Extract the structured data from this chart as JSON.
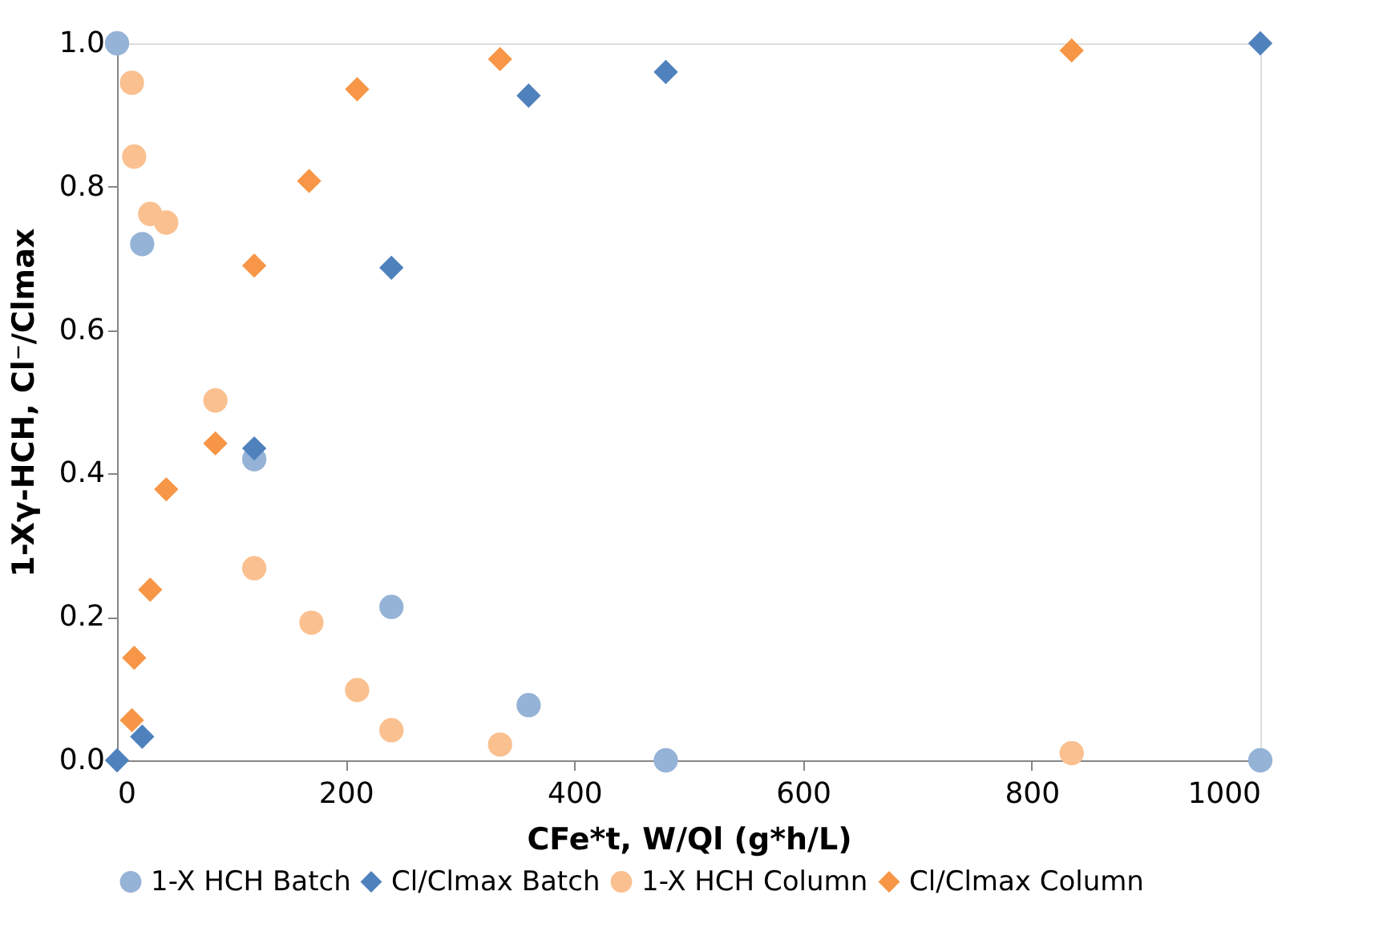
{
  "chart_data": {
    "type": "scatter",
    "xlabel": "CFe*t, W/Ql (g*h/L)",
    "ylabel": "1-Xγ-HCH, Cl⁻/Clmax",
    "xlim": [
      0,
      1000
    ],
    "xticks": [
      0,
      200,
      400,
      600,
      800,
      1000
    ],
    "ylim": [
      0,
      1
    ],
    "yticks": [
      {
        "value": 0,
        "label": "0.0"
      },
      0.2,
      0.4,
      0.6,
      0.8,
      {
        "value": 1,
        "label": "1.0"
      }
    ],
    "grid": false,
    "legend": "bottom",
    "series": [
      {
        "name": "1-X HCH Batch",
        "color": "#95b3d7",
        "marker": "circle",
        "x": [
          0,
          22,
          120,
          240,
          360,
          480,
          1000
        ],
        "values": [
          1.0,
          0.72,
          0.42,
          0.214,
          0.077,
          0.0,
          0.0
        ]
      },
      {
        "name": "Cl/Clmax Batch",
        "color": "#4f81bd",
        "marker": "diamond",
        "x": [
          0,
          22,
          120,
          240,
          360,
          480,
          1000
        ],
        "values": [
          0.0,
          0.033,
          0.435,
          0.687,
          0.927,
          0.96,
          1.0
        ]
      },
      {
        "name": "1-X HCH Column",
        "color": "#fac090",
        "marker": "circle",
        "x": [
          13,
          15,
          29,
          43,
          86,
          120,
          170,
          210,
          240,
          335,
          835
        ],
        "values": [
          0.945,
          0.842,
          0.762,
          0.75,
          0.502,
          0.268,
          0.192,
          0.098,
          0.042,
          0.022,
          0.01
        ]
      },
      {
        "name": "Cl/Clmax Column",
        "color": "#f79646",
        "marker": "diamond",
        "x": [
          13,
          15,
          29,
          43,
          86,
          120,
          168,
          210,
          335,
          835
        ],
        "values": [
          0.056,
          0.143,
          0.238,
          0.378,
          0.442,
          0.69,
          0.808,
          0.936,
          0.978,
          0.99
        ]
      }
    ]
  }
}
